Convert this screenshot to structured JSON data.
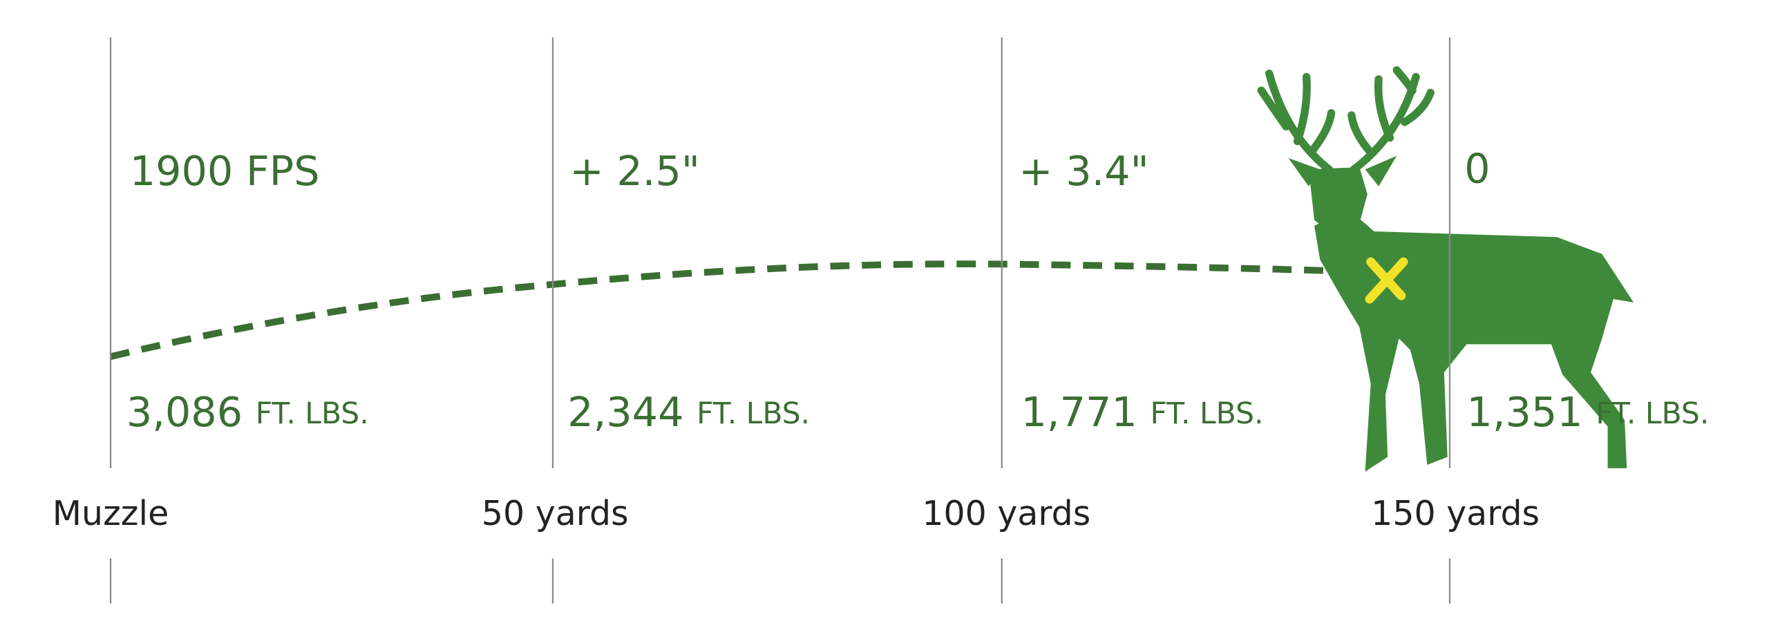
{
  "columns": [
    {
      "label": "Muzzle",
      "top": "1900 FPS",
      "energy": "3,086",
      "unit": "FT. LBS."
    },
    {
      "label": "50 yards",
      "top": "+ 2.5\"",
      "energy": "2,344",
      "unit": "FT. LBS."
    },
    {
      "label": "100 yards",
      "top": "+ 3.4\"",
      "energy": "1,771",
      "unit": "FT. LBS."
    },
    {
      "label": "150 yards",
      "top": "0",
      "energy": "1,351",
      "unit": "FT. LBS."
    }
  ]
}
